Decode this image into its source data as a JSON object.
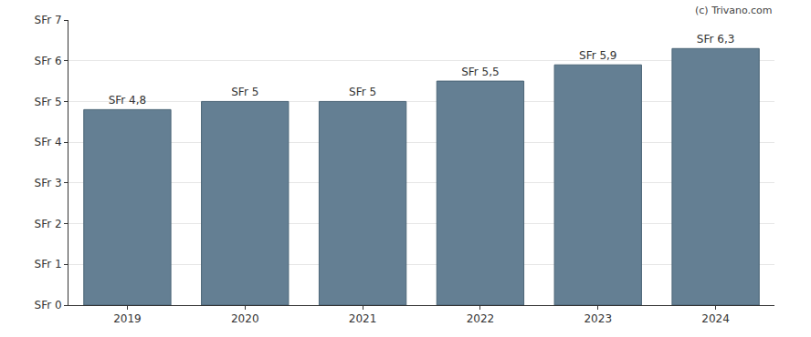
{
  "chart_data": {
    "type": "bar",
    "credit": "(c) Trivano.com",
    "categories": [
      "2019",
      "2020",
      "2021",
      "2022",
      "2023",
      "2024"
    ],
    "values": [
      4.8,
      5,
      5,
      5.5,
      5.9,
      6.3
    ],
    "value_labels": [
      "SFr 4,8",
      "SFr 5",
      "SFr 5",
      "SFr 5,5",
      "SFr 5,9",
      "SFr 6,3"
    ],
    "data_labels": true,
    "color": "#647f93",
    "ylim": [
      0,
      7
    ],
    "yticks": [
      {
        "value": 0,
        "label": "SFr 0"
      },
      {
        "value": 1,
        "label": "SFr 1"
      },
      {
        "value": 2,
        "label": "SFr 2"
      },
      {
        "value": 3,
        "label": "SFr 3"
      },
      {
        "value": 4,
        "label": "SFr 4"
      },
      {
        "value": 5,
        "label": "SFr 5"
      },
      {
        "value": 6,
        "label": "SFr 6"
      },
      {
        "value": 7,
        "label": "SFr 7"
      }
    ],
    "grid": true
  }
}
